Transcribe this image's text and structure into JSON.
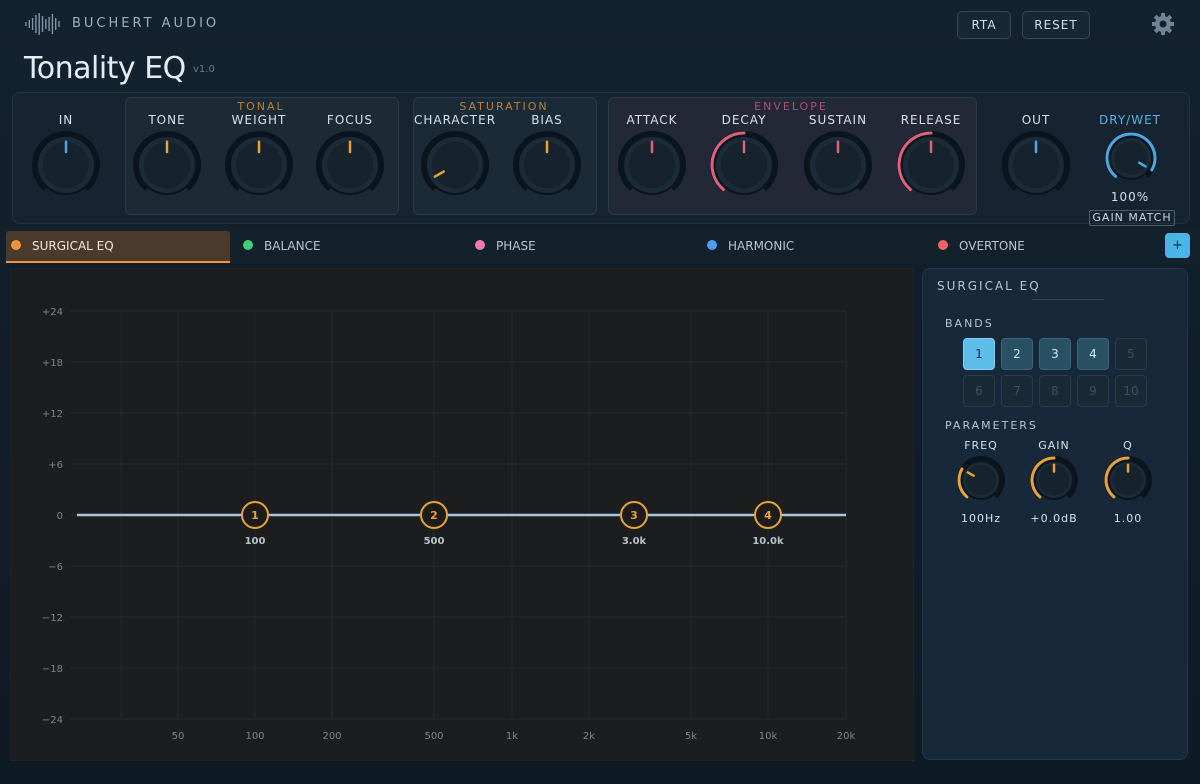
{
  "header": {
    "brand": "BUCHERT AUDIO",
    "title": "Tonality EQ",
    "version": "v1.0",
    "buttons": [
      "RTA",
      "RESET"
    ]
  },
  "controls": {
    "in": "IN",
    "tonal": {
      "title": "TONAL",
      "knobs": [
        "TONE",
        "WEIGHT",
        "FOCUS"
      ]
    },
    "saturation": {
      "title": "SATURATION",
      "knobs": [
        "CHARACTER",
        "BIAS"
      ]
    },
    "envelope": {
      "title": "ENVELOPE",
      "knobs": [
        "ATTACK",
        "DECAY",
        "SUSTAIN",
        "RELEASE"
      ]
    },
    "out": "OUT",
    "dry_wet": {
      "label": "DRY/WET",
      "value": "100%",
      "button": "GAIN MATCH"
    }
  },
  "tabs": [
    {
      "label": "SURGICAL EQ",
      "color": "#f0953a"
    },
    {
      "label": "BALANCE",
      "color": "#3ecf7a"
    },
    {
      "label": "PHASE",
      "color": "#f07aa8"
    },
    {
      "label": "HARMONIC",
      "color": "#4f9ef0"
    },
    {
      "label": "OVERTONE",
      "color": "#f06464"
    }
  ],
  "add_tab": "+",
  "eq_graph": {
    "y_labels": [
      "+24",
      "+18",
      "+12",
      "+6",
      "0",
      "−6",
      "−12",
      "−18",
      "−24"
    ],
    "x_labels": [
      "50",
      "100",
      "200",
      "500",
      "1k",
      "2k",
      "5k",
      "10k",
      "20k"
    ],
    "nodes": [
      {
        "label": "1",
        "freq": "100"
      },
      {
        "label": "2",
        "freq": "500"
      },
      {
        "label": "3",
        "freq": "3.0k"
      },
      {
        "label": "4",
        "freq": "10.0k"
      }
    ]
  },
  "panel": {
    "title": "SURGICAL EQ",
    "bands_label": "BANDS",
    "bands": [
      "1",
      "2",
      "3",
      "4",
      "5",
      "6",
      "7",
      "8",
      "9",
      "10"
    ],
    "parameters_label": "PARAMETERS",
    "params": [
      {
        "label": "FREQ",
        "value": "100Hz"
      },
      {
        "label": "GAIN",
        "value": "+0.0dB"
      },
      {
        "label": "Q",
        "value": "1.00"
      }
    ]
  }
}
